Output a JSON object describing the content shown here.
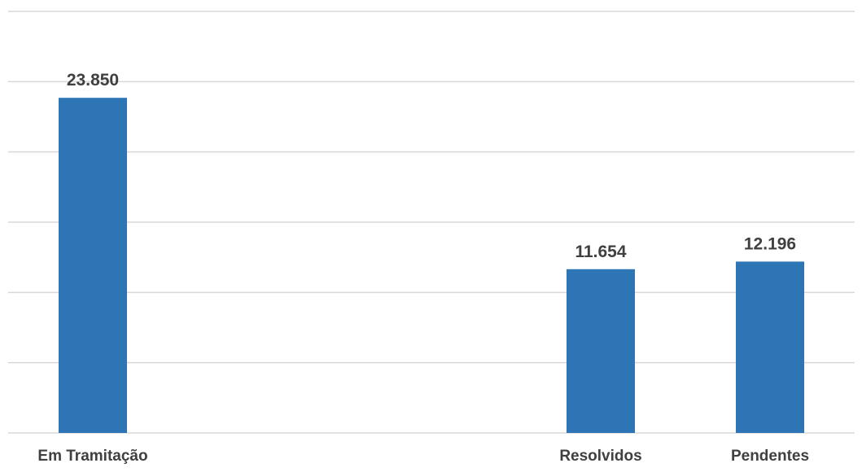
{
  "chart_data": {
    "type": "bar",
    "categories": [
      "Em Tramitação",
      "",
      "",
      "Resolvidos",
      "Pendentes"
    ],
    "values": [
      23850,
      null,
      null,
      11654,
      12196
    ],
    "data_labels": [
      "23.850",
      "",
      "",
      "11.654",
      "12.196"
    ],
    "ylim": [
      0,
      30000
    ],
    "y_major_unit": 5000,
    "grid": true,
    "legend": "none",
    "colors": {
      "bar": "#2e75b6",
      "grid": "#d9d9d9",
      "text": "#404040"
    }
  }
}
